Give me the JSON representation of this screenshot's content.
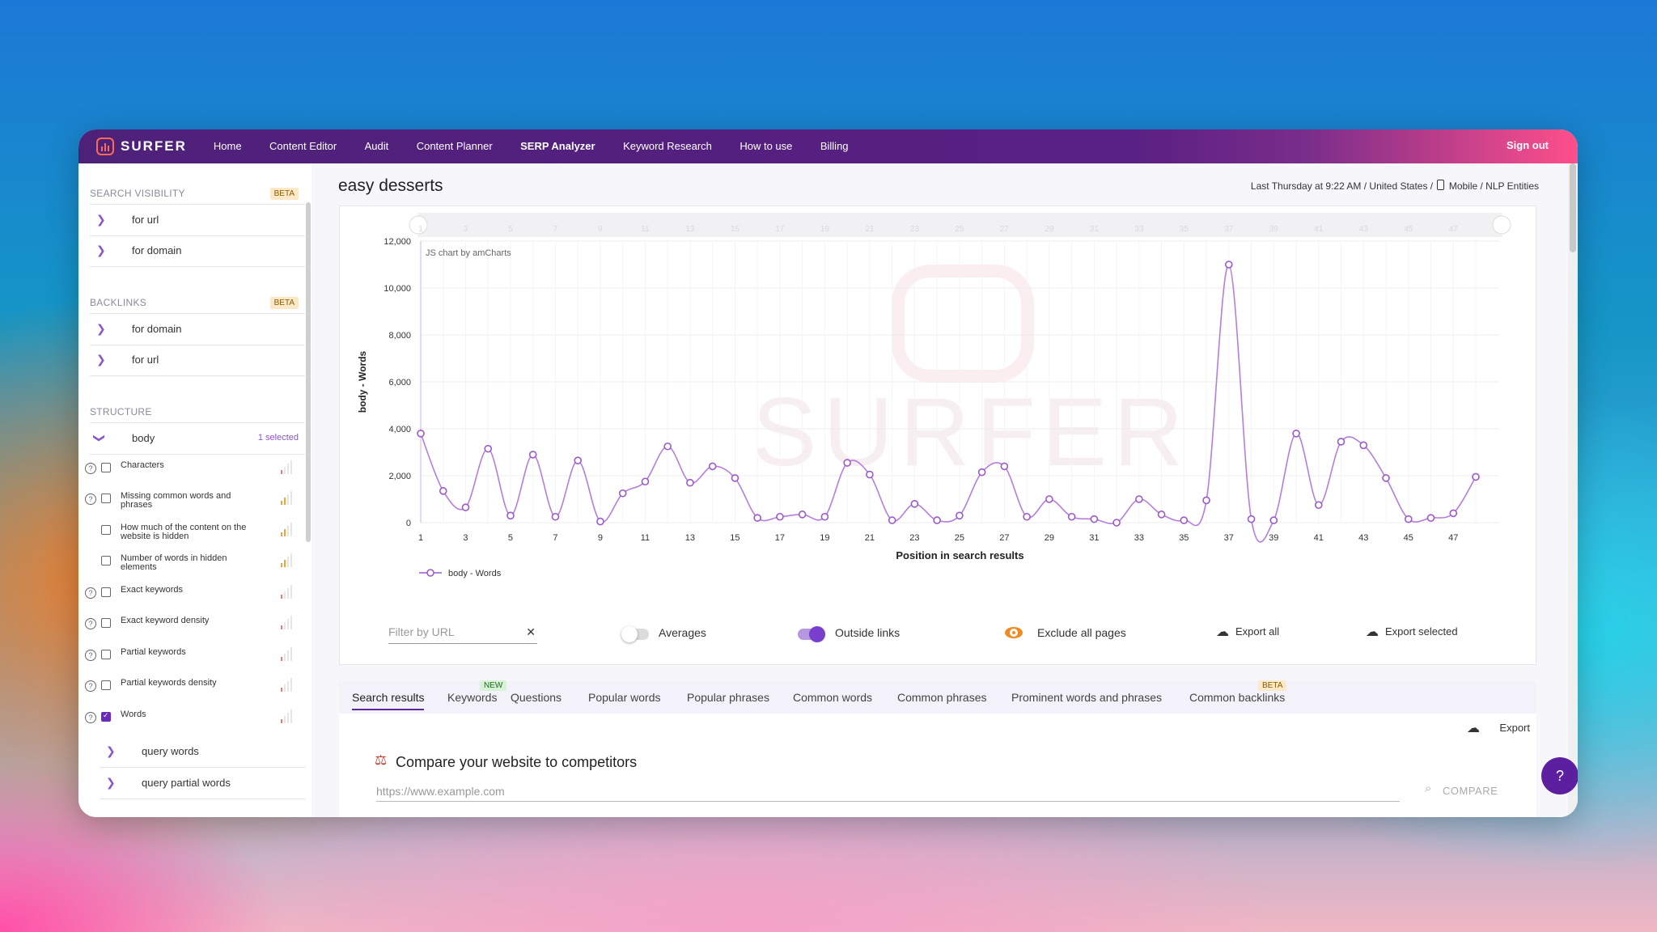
{
  "topbar": {
    "logo": "SURFER",
    "nav": [
      "Home",
      "Content Editor",
      "Audit",
      "Content Planner",
      "SERP Analyzer",
      "Keyword Research",
      "How to use",
      "Billing"
    ],
    "active": "SERP Analyzer",
    "sign_out": "Sign out"
  },
  "sidebar": {
    "search_visibility": {
      "title": "SEARCH VISIBILITY",
      "badge": "BETA",
      "items": [
        "for url",
        "for domain"
      ]
    },
    "backlinks": {
      "title": "BACKLINKS",
      "badge": "BETA",
      "items": [
        "for domain",
        "for url"
      ]
    },
    "structure": {
      "title": "STRUCTURE",
      "group": "body",
      "selected": "1 selected"
    },
    "metrics": [
      {
        "label": "Characters",
        "help": true,
        "checked": false
      },
      {
        "label": "Missing common words and phrases",
        "help": true,
        "checked": false
      },
      {
        "label": "How much of the content on the website is hidden",
        "help": false,
        "checked": false
      },
      {
        "label": "Number of words in hidden elements",
        "help": false,
        "checked": false
      },
      {
        "label": "Exact keywords",
        "help": true,
        "checked": false
      },
      {
        "label": "Exact keyword density",
        "help": true,
        "checked": false
      },
      {
        "label": "Partial keywords",
        "help": true,
        "checked": false
      },
      {
        "label": "Partial keywords density",
        "help": true,
        "checked": false
      },
      {
        "label": "Words",
        "help": true,
        "checked": true
      }
    ],
    "sub_items": [
      "query words",
      "query partial words"
    ]
  },
  "main": {
    "title": "easy desserts",
    "meta_left": "Last Thursday at 9:22 AM / United States /",
    "meta_right": "Mobile / NLP Entities",
    "credit": "JS chart by amCharts",
    "watermark": "SURFER",
    "filter_placeholder": "Filter by URL",
    "averages": "Averages",
    "outside_links": "Outside links",
    "exclude": "Exclude all pages",
    "export_all": "Export all",
    "export_selected": "Export selected",
    "tabs": [
      "Search results",
      "Keywords",
      "Questions",
      "Popular words",
      "Popular phrases",
      "Common words",
      "Common phrases",
      "Prominent words and phrases",
      "Common backlinks"
    ],
    "tab_new": "NEW",
    "tab_beta": "BETA",
    "export": "Export",
    "compare_title": "Compare your website to competitors",
    "compare_placeholder": "https://www.example.com",
    "compare_button": "COMPARE"
  },
  "chart_data": {
    "type": "line",
    "xlabel": "Position in search results",
    "ylabel": "body - Words",
    "ylim": [
      0,
      12000
    ],
    "yticks": [
      0,
      2000,
      4000,
      6000,
      8000,
      10000,
      12000
    ],
    "ytick_labels": [
      "0",
      "2,000",
      "4,000",
      "6,000",
      "8,000",
      "10,000",
      "12,000"
    ],
    "xtick_labels": [
      "1",
      "3",
      "5",
      "7",
      "9",
      "11",
      "13",
      "15",
      "17",
      "19",
      "21",
      "23",
      "25",
      "27",
      "29",
      "31",
      "33",
      "35",
      "37",
      "39",
      "41",
      "43",
      "45",
      "47"
    ],
    "x": [
      1,
      2,
      3,
      4,
      5,
      6,
      7,
      8,
      9,
      10,
      11,
      12,
      13,
      14,
      15,
      16,
      17,
      18,
      19,
      20,
      21,
      22,
      23,
      24,
      25,
      26,
      27,
      28,
      29,
      30,
      31,
      32,
      33,
      34,
      35,
      36,
      37,
      38,
      39,
      40,
      41,
      42,
      43,
      44,
      45,
      46,
      47,
      48
    ],
    "series": [
      {
        "name": "body - Words",
        "color": "#b57ede",
        "values": [
          3800,
          1350,
          650,
          3150,
          300,
          2900,
          250,
          2650,
          50,
          1250,
          1750,
          3250,
          1700,
          2400,
          1900,
          200,
          250,
          350,
          250,
          2550,
          2050,
          100,
          800,
          100,
          300,
          2150,
          2400,
          250,
          1000,
          250,
          150,
          0,
          1000,
          350,
          100,
          950,
          11000,
          150,
          100,
          3800,
          750,
          3450,
          3300,
          1900,
          150,
          200,
          400,
          1950
        ]
      }
    ],
    "legend": "bottom-left",
    "grid": true
  }
}
